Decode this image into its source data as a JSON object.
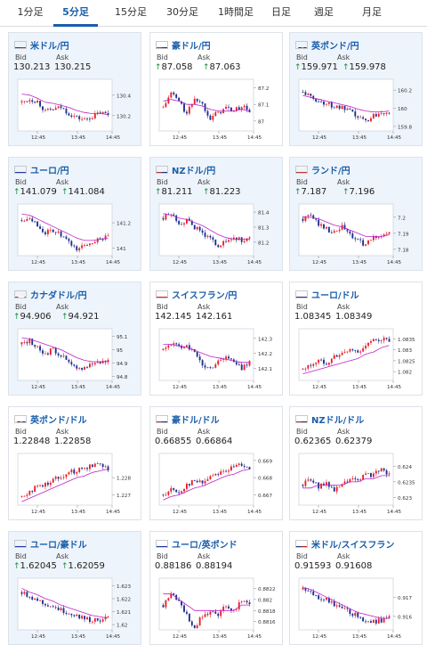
{
  "tabs": [
    {
      "label": "1分足",
      "active": false
    },
    {
      "label": "5分足",
      "active": true
    },
    {
      "label": "15分足",
      "active": false
    },
    {
      "label": "30分足",
      "active": false
    },
    {
      "label": "1時間足",
      "active": false
    },
    {
      "label": "日足",
      "active": false
    },
    {
      "label": "週足",
      "active": false
    },
    {
      "label": "月足",
      "active": false
    }
  ],
  "labels": {
    "bid": "Bid",
    "ask": "Ask"
  },
  "colors": {
    "up": "#e8202a",
    "down": "#1f2f8f",
    "ma": "#c020c8",
    "accent": "#1a5eaa",
    "arrow": "#1a8a3a"
  },
  "cards": [
    {
      "name": "米ドル/円",
      "flag": "flag-us",
      "highlight": true,
      "arrow": false,
      "bid": "130.213",
      "ask": "130.215",
      "chart_data": {
        "type": "candlestick",
        "x_ticks": [
          "12:45",
          "13:45",
          "14:45"
        ],
        "y_ticks": [
          "130.4",
          "130.2"
        ],
        "ylim": [
          130.05,
          130.52
        ],
        "trend": [
          130.33,
          130.36,
          130.34,
          130.24,
          130.26,
          130.28,
          130.22,
          130.18,
          130.16,
          130.19,
          130.23,
          130.21
        ],
        "ma": [
          130.41,
          130.4,
          130.37,
          130.33,
          130.32,
          130.3,
          130.28,
          130.25,
          130.23,
          130.22,
          130.22,
          130.21
        ]
      }
    },
    {
      "name": "豪ドル/円",
      "flag": "flag-au",
      "highlight": false,
      "arrow": true,
      "bid": "87.058",
      "ask": "87.063",
      "chart_data": {
        "type": "candlestick",
        "x_ticks": [
          "12:45",
          "13:45",
          "14:45"
        ],
        "y_ticks": [
          "87.2",
          "87.1",
          "87"
        ],
        "ylim": [
          86.94,
          87.23
        ],
        "trend": [
          87.08,
          87.17,
          87.12,
          87.04,
          87.14,
          87.1,
          87.02,
          87.05,
          87.08,
          87.06,
          87.09,
          87.06
        ],
        "ma": [
          87.12,
          87.13,
          87.12,
          87.1,
          87.1,
          87.09,
          87.07,
          87.06,
          87.06,
          87.06,
          87.07,
          87.06
        ]
      }
    },
    {
      "name": "英ポンド/円",
      "flag": "flag-gb",
      "highlight": true,
      "arrow": true,
      "bid": "159.971",
      "ask": "159.978",
      "chart_data": {
        "type": "candlestick",
        "x_ticks": [
          "12:45",
          "13:45",
          "14:45"
        ],
        "y_ticks": [
          "160.2",
          "160",
          "159.8"
        ],
        "ylim": [
          159.75,
          160.28
        ],
        "trend": [
          160.18,
          160.12,
          160.08,
          160.05,
          160.02,
          160.0,
          159.96,
          159.9,
          159.86,
          159.92,
          159.96,
          159.97
        ],
        "ma": [
          160.14,
          160.12,
          160.1,
          160.08,
          160.06,
          160.04,
          160.02,
          159.99,
          159.97,
          159.96,
          159.96,
          159.97
        ]
      }
    },
    {
      "name": "ユーロ/円",
      "flag": "flag-eu",
      "highlight": true,
      "arrow": true,
      "bid": "141.079",
      "ask": "141.084",
      "chart_data": {
        "type": "candlestick",
        "x_ticks": [
          "12:45",
          "13:45",
          "14:45"
        ],
        "y_ticks": [
          "141.2",
          "141"
        ],
        "ylim": [
          140.94,
          141.32
        ],
        "trend": [
          141.22,
          141.25,
          141.18,
          141.12,
          141.14,
          141.1,
          141.04,
          140.99,
          141.02,
          141.05,
          141.08,
          141.08
        ],
        "ma": [
          141.27,
          141.26,
          141.23,
          141.2,
          141.17,
          141.14,
          141.11,
          141.08,
          141.06,
          141.06,
          141.07,
          141.08
        ]
      }
    },
    {
      "name": "NZドル/円",
      "flag": "flag-nz",
      "highlight": true,
      "arrow": true,
      "bid": "81.211",
      "ask": "81.223",
      "chart_data": {
        "type": "candlestick",
        "x_ticks": [
          "12:45",
          "13:45",
          "14:45"
        ],
        "y_ticks": [
          "81.4",
          "81.3",
          "81.2"
        ],
        "ylim": [
          81.11,
          81.43
        ],
        "trend": [
          81.36,
          81.39,
          81.33,
          81.34,
          81.3,
          81.26,
          81.22,
          81.18,
          81.2,
          81.23,
          81.21,
          81.22
        ],
        "ma": [
          81.39,
          81.38,
          81.36,
          81.35,
          81.33,
          81.31,
          81.28,
          81.25,
          81.23,
          81.22,
          81.22,
          81.22
        ]
      }
    },
    {
      "name": "ランド/円",
      "flag": "flag-za",
      "highlight": true,
      "arrow": true,
      "bid": "7.187",
      "ask": "7.196",
      "chart_data": {
        "type": "candlestick",
        "x_ticks": [
          "12:45",
          "13:45",
          "14:45"
        ],
        "y_ticks": [
          "7.2",
          "7.19",
          "7.18"
        ],
        "ylim": [
          7.176,
          7.206
        ],
        "trend": [
          7.199,
          7.201,
          7.196,
          7.193,
          7.19,
          7.194,
          7.189,
          7.185,
          7.183,
          7.187,
          7.189,
          7.19
        ],
        "ma": [
          7.2,
          7.2,
          7.199,
          7.197,
          7.195,
          7.194,
          7.192,
          7.19,
          7.188,
          7.188,
          7.188,
          7.189
        ]
      }
    },
    {
      "name": "カナダドル/円",
      "flag": "flag-ca",
      "highlight": true,
      "arrow": true,
      "bid": "94.906",
      "ask": "94.921",
      "chart_data": {
        "type": "candlestick",
        "x_ticks": [
          "12:45",
          "13:45",
          "14:45"
        ],
        "y_ticks": [
          "95.1",
          "95",
          "94.9",
          "94.8"
        ],
        "ylim": [
          94.77,
          95.13
        ],
        "trend": [
          95.04,
          95.07,
          95.01,
          94.97,
          95.0,
          94.96,
          94.9,
          94.85,
          94.87,
          94.9,
          94.91,
          94.92
        ],
        "ma": [
          95.09,
          95.08,
          95.06,
          95.04,
          95.02,
          95.0,
          94.97,
          94.94,
          94.92,
          94.91,
          94.91,
          94.91
        ]
      }
    },
    {
      "name": "スイスフラン/円",
      "flag": "flag-ch",
      "highlight": false,
      "arrow": false,
      "bid": "142.145",
      "ask": "142.161",
      "chart_data": {
        "type": "candlestick",
        "x_ticks": [
          "12:45",
          "13:45",
          "14:45"
        ],
        "y_ticks": [
          "142.3",
          "142.2",
          "142.1"
        ],
        "ylim": [
          142.02,
          142.34
        ],
        "trend": [
          142.22,
          142.27,
          142.24,
          142.26,
          142.2,
          142.12,
          142.1,
          142.15,
          142.18,
          142.14,
          142.1,
          142.15
        ],
        "ma": [
          142.26,
          142.26,
          142.25,
          142.24,
          142.22,
          142.2,
          142.18,
          142.17,
          142.16,
          142.15,
          142.14,
          142.14
        ]
      }
    },
    {
      "name": "ユーロ/ドル",
      "flag": "flag-eu-us",
      "highlight": false,
      "arrow": false,
      "bid": "1.08345",
      "ask": "1.08349",
      "chart_data": {
        "type": "candlestick",
        "x_ticks": [
          "12:45",
          "13:45",
          "14:45"
        ],
        "y_ticks": [
          "1.0835",
          "1.083",
          "1.0825",
          "1.082"
        ],
        "ylim": [
          1.0816,
          1.0838
        ],
        "trend": [
          1.0821,
          1.0823,
          1.0825,
          1.0824,
          1.0827,
          1.0828,
          1.083,
          1.0829,
          1.0832,
          1.0834,
          1.0835,
          1.0834
        ],
        "ma": [
          1.0819,
          1.082,
          1.0821,
          1.0822,
          1.0823,
          1.0824,
          1.0825,
          1.0826,
          1.0828,
          1.0829,
          1.0831,
          1.0832
        ]
      }
    },
    {
      "name": "英ポンド/ドル",
      "flag": "flag-gb-us",
      "highlight": false,
      "arrow": false,
      "bid": "1.22848",
      "ask": "1.22858",
      "chart_data": {
        "type": "candlestick",
        "x_ticks": [
          "12:45",
          "13:45",
          "14:45"
        ],
        "y_ticks": [
          "1.228",
          "1.227"
        ],
        "ylim": [
          1.2264,
          1.2292
        ],
        "trend": [
          1.2269,
          1.2272,
          1.2275,
          1.2276,
          1.2279,
          1.2281,
          1.2283,
          1.2284,
          1.2286,
          1.2287,
          1.2289,
          1.2285
        ],
        "ma": [
          1.2266,
          1.2268,
          1.227,
          1.2272,
          1.2274,
          1.2276,
          1.2278,
          1.228,
          1.2281,
          1.2283,
          1.2284,
          1.2285
        ]
      }
    },
    {
      "name": "豪ドル/ドル",
      "flag": "flag-au-us",
      "highlight": false,
      "arrow": false,
      "bid": "0.66855",
      "ask": "0.66864",
      "chart_data": {
        "type": "candlestick",
        "x_ticks": [
          "12:45",
          "13:45",
          "14:45"
        ],
        "y_ticks": [
          "0.669",
          "0.668",
          "0.667"
        ],
        "ylim": [
          0.6664,
          0.6692
        ],
        "trend": [
          0.667,
          0.6673,
          0.6671,
          0.6676,
          0.6678,
          0.6677,
          0.6681,
          0.6683,
          0.6684,
          0.6686,
          0.6688,
          0.6686
        ],
        "ma": [
          0.6667,
          0.6669,
          0.667,
          0.6672,
          0.6674,
          0.6675,
          0.6677,
          0.6679,
          0.6681,
          0.6682,
          0.6684,
          0.6685
        ]
      }
    },
    {
      "name": "NZドル/ドル",
      "flag": "flag-nz-us",
      "highlight": false,
      "arrow": false,
      "bid": "0.62365",
      "ask": "0.62379",
      "chart_data": {
        "type": "candlestick",
        "x_ticks": [
          "12:45",
          "13:45",
          "14:45"
        ],
        "y_ticks": [
          "0.624",
          "0.6235",
          "0.623"
        ],
        "ylim": [
          0.62275,
          0.6243
        ],
        "trend": [
          0.6234,
          0.6236,
          0.6233,
          0.6235,
          0.6232,
          0.6234,
          0.6236,
          0.6235,
          0.6238,
          0.6237,
          0.624,
          0.6237
        ],
        "ma": [
          0.6233,
          0.6233,
          0.6234,
          0.6234,
          0.6234,
          0.6234,
          0.6235,
          0.6235,
          0.6236,
          0.6236,
          0.6237,
          0.6237
        ]
      }
    },
    {
      "name": "ユーロ/豪ドル",
      "flag": "flag-eu-au",
      "highlight": true,
      "arrow": true,
      "bid": "1.62045",
      "ask": "1.62059",
      "chart_data": {
        "type": "candlestick",
        "x_ticks": [
          "12:45",
          "13:45",
          "14:45"
        ],
        "y_ticks": [
          "1.623",
          "1.622",
          "1.621",
          "1.62"
        ],
        "ylim": [
          1.6196,
          1.6233
        ],
        "trend": [
          1.6225,
          1.6222,
          1.6219,
          1.6216,
          1.6214,
          1.6211,
          1.6209,
          1.6207,
          1.6205,
          1.6203,
          1.6204,
          1.6205
        ],
        "ma": [
          1.6228,
          1.6225,
          1.6223,
          1.622,
          1.6218,
          1.6215,
          1.6213,
          1.6211,
          1.6209,
          1.6207,
          1.6206,
          1.6205
        ]
      }
    },
    {
      "name": "ユーロ/英ポンド",
      "flag": "flag-eu-gb",
      "highlight": false,
      "arrow": false,
      "bid": "0.88186",
      "ask": "0.88194",
      "chart_data": {
        "type": "candlestick",
        "x_ticks": [
          "12:45",
          "13:45",
          "14:45"
        ],
        "y_ticks": [
          "0.8822",
          "0.882",
          "0.8818",
          "0.8816"
        ],
        "ylim": [
          0.88145,
          0.88232
        ],
        "trend": [
          0.8819,
          0.8821,
          0.882,
          0.8817,
          0.8815,
          0.8817,
          0.8818,
          0.8817,
          0.8819,
          0.8818,
          0.882,
          0.8819
        ],
        "ma": [
          0.8821,
          0.8821,
          0.882,
          0.8819,
          0.8818,
          0.8818,
          0.8818,
          0.8818,
          0.8818,
          0.8818,
          0.8819,
          0.8819
        ]
      }
    },
    {
      "name": "米ドル/スイスフラン",
      "flag": "flag-us-ch",
      "highlight": false,
      "arrow": false,
      "bid": "0.91593",
      "ask": "0.91608",
      "chart_data": {
        "type": "candlestick",
        "x_ticks": [
          "12:45",
          "13:45",
          "14:45"
        ],
        "y_ticks": [
          "0.917",
          "0.916"
        ],
        "ylim": [
          0.9153,
          0.9178
        ],
        "trend": [
          0.9174,
          0.9172,
          0.917,
          0.9169,
          0.9166,
          0.9164,
          0.9162,
          0.916,
          0.9158,
          0.9157,
          0.9158,
          0.916
        ],
        "ma": [
          0.9175,
          0.9174,
          0.9172,
          0.917,
          0.9168,
          0.9166,
          0.9164,
          0.9162,
          0.9161,
          0.916,
          0.9159,
          0.9159
        ]
      }
    }
  ]
}
